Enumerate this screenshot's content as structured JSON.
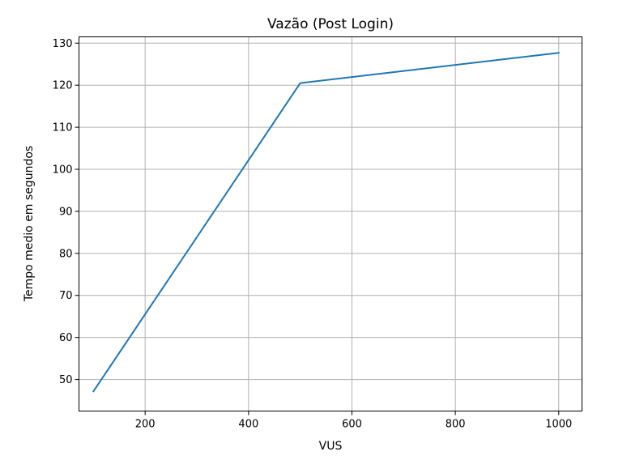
{
  "chart_data": {
    "type": "line",
    "title": "Vazão (Post Login)",
    "xlabel": "VUS",
    "ylabel": "Tempo medio em segundos",
    "xlim": [
      72,
      1045
    ],
    "ylim": [
      42.5,
      131.5
    ],
    "xticks": [
      200,
      400,
      600,
      800,
      1000
    ],
    "yticks": [
      50,
      60,
      70,
      80,
      90,
      100,
      110,
      120,
      130
    ],
    "grid": true,
    "series": [
      {
        "color": "#1f77b4",
        "x": [
          100,
          500,
          1000
        ],
        "y": [
          47.2,
          120.5,
          127.7
        ]
      }
    ]
  }
}
